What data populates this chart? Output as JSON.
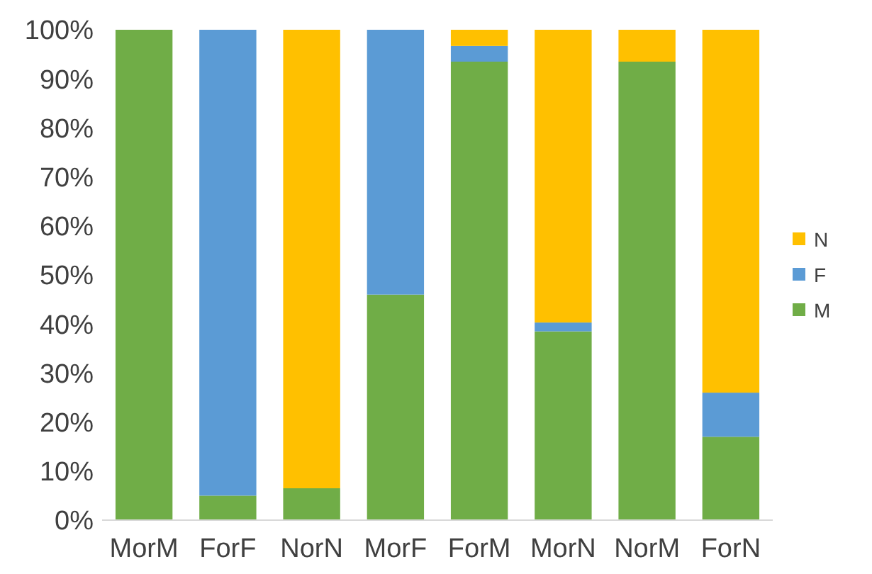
{
  "chart_data": {
    "type": "bar",
    "stacked": true,
    "categories": [
      "MorM",
      "ForF",
      "NorN",
      "MorF",
      "ForM",
      "MorN",
      "NorM",
      "ForN"
    ],
    "series": [
      {
        "name": "M",
        "color": "#70ad47",
        "values": [
          100,
          5,
          6.5,
          46,
          93.5,
          38.5,
          93.5,
          17
        ]
      },
      {
        "name": "F",
        "color": "#5b9bd5",
        "values": [
          0,
          95,
          0,
          54,
          3.2,
          1.8,
          0,
          9
        ]
      },
      {
        "name": "N",
        "color": "#ffc000",
        "values": [
          0,
          0,
          93.5,
          0,
          3.3,
          59.7,
          6.5,
          74
        ]
      }
    ],
    "ylim": [
      0,
      100
    ],
    "yticks": [
      {
        "value": 0,
        "label": "0%"
      },
      {
        "value": 10,
        "label": "10%"
      },
      {
        "value": 20,
        "label": "20%"
      },
      {
        "value": 30,
        "label": "30%"
      },
      {
        "value": 40,
        "label": "40%"
      },
      {
        "value": 50,
        "label": "50%"
      },
      {
        "value": 60,
        "label": "60%"
      },
      {
        "value": 70,
        "label": "70%"
      },
      {
        "value": 80,
        "label": "80%"
      },
      {
        "value": 90,
        "label": "90%"
      },
      {
        "value": 100,
        "label": "100%"
      }
    ],
    "legend": "right"
  }
}
